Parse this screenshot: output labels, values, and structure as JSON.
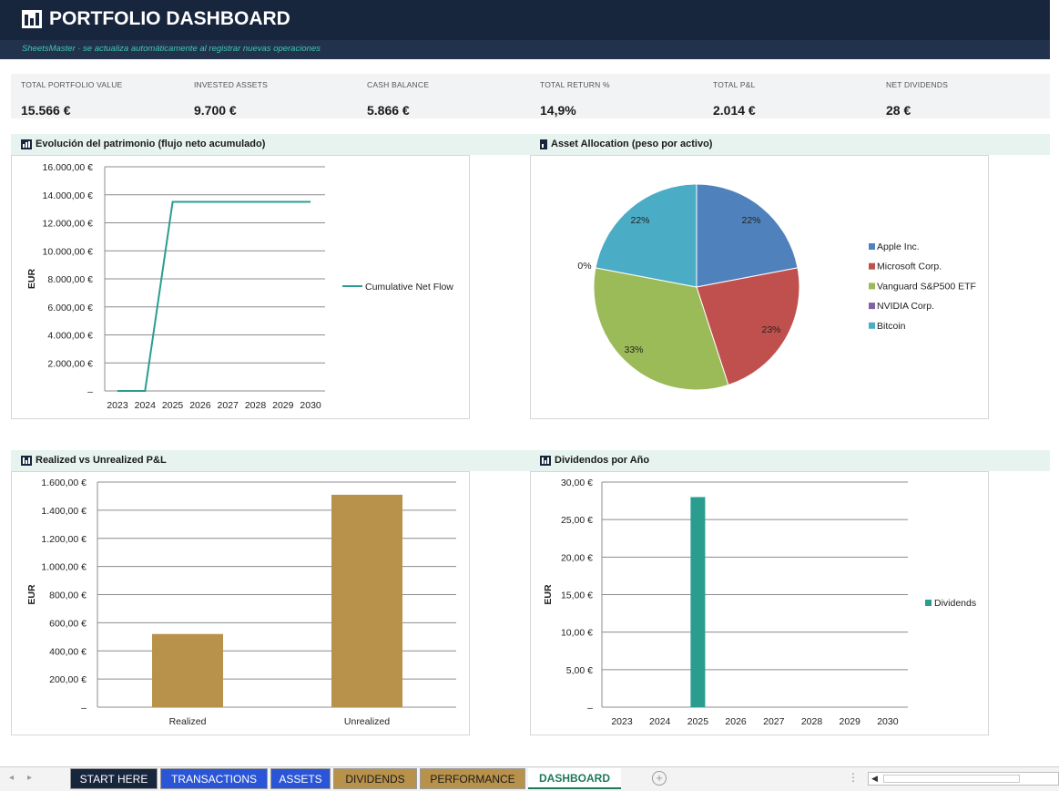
{
  "header": {
    "title": "PORTFOLIO DASHBOARD",
    "subtitle": "SheetsMaster · se actualiza automáticamente al registrar nuevas operaciones"
  },
  "kpis": [
    {
      "label": "TOTAL PORTFOLIO VALUE",
      "value": "15.566 €"
    },
    {
      "label": "INVESTED ASSETS",
      "value": "9.700 €"
    },
    {
      "label": "CASH BALANCE",
      "value": "5.866 €"
    },
    {
      "label": "TOTAL RETURN %",
      "value": "14,9%"
    },
    {
      "label": "TOTAL P&L",
      "value": "2.014 €"
    },
    {
      "label": "NET DIVIDENDS",
      "value": "28 €"
    }
  ],
  "sections": {
    "wealth": "Evolución del patrimonio (flujo neto acumulado)",
    "allocation": "Asset Allocation (peso por activo)",
    "pnl": "Realized vs Unrealized P&L",
    "dividends": "Dividendos por Año"
  },
  "colors": {
    "header_bg": "#17253d",
    "accent_teal": "#2a9d8f",
    "bar_gold": "#b8924a",
    "pie": [
      "#4f81bd",
      "#c0504d",
      "#9bbb59",
      "#8064a2",
      "#4bacc6"
    ]
  },
  "chart_data": [
    {
      "type": "line",
      "title": "",
      "xlabel": "",
      "ylabel": "EUR",
      "x": [
        "2023",
        "2024",
        "2025",
        "2026",
        "2027",
        "2028",
        "2029",
        "2030"
      ],
      "series": [
        {
          "name": "Cumulative Net Flow",
          "values": [
            0,
            0,
            13500,
            13500,
            13500,
            13500,
            13500,
            13500
          ]
        }
      ],
      "ylim": [
        0,
        16000
      ],
      "yticks": [
        "–",
        "2.000,00 €",
        "4.000,00 €",
        "6.000,00 €",
        "8.000,00 €",
        "10.000,00 €",
        "12.000,00 €",
        "14.000,00 €",
        "16.000,00 €"
      ],
      "grid": true,
      "legend": "right"
    },
    {
      "type": "pie",
      "labels": [
        "Apple Inc.",
        "Microsoft Corp.",
        "Vanguard S&P500 ETF",
        "NVIDIA Corp.",
        "Bitcoin"
      ],
      "values": [
        22,
        23,
        33,
        0,
        22
      ],
      "data_labels": [
        "22%",
        "23%",
        "33%",
        "0%",
        "22%"
      ],
      "legend": "right"
    },
    {
      "type": "bar",
      "categories": [
        "Realized",
        "Unrealized"
      ],
      "values": [
        520,
        1510
      ],
      "ylabel": "EUR",
      "ylim": [
        0,
        1600
      ],
      "yticks": [
        "–",
        "200,00 €",
        "400,00 €",
        "600,00 €",
        "800,00 €",
        "1.000,00 €",
        "1.200,00 €",
        "1.400,00 €",
        "1.600,00 €"
      ],
      "grid": true
    },
    {
      "type": "bar",
      "categories": [
        "2023",
        "2024",
        "2025",
        "2026",
        "2027",
        "2028",
        "2029",
        "2030"
      ],
      "series": [
        {
          "name": "Dividends",
          "values": [
            0,
            0,
            28,
            0,
            0,
            0,
            0,
            0
          ]
        }
      ],
      "ylabel": "EUR",
      "ylim": [
        0,
        30
      ],
      "yticks": [
        "–",
        "5,00 €",
        "10,00 €",
        "15,00 €",
        "20,00 €",
        "25,00 €",
        "30,00 €"
      ],
      "grid": true,
      "legend": "right"
    }
  ],
  "tabs": [
    {
      "label": "START HERE",
      "bg": "#17253d",
      "fg": "#ffffff"
    },
    {
      "label": "TRANSACTIONS",
      "bg": "#2a55d6",
      "fg": "#ffffff"
    },
    {
      "label": "ASSETS",
      "bg": "#2a55d6",
      "fg": "#ffffff"
    },
    {
      "label": "DIVIDENDS",
      "bg": "#b8924a",
      "fg": "#1a1a1a"
    },
    {
      "label": "PERFORMANCE",
      "bg": "#b8924a",
      "fg": "#1a1a1a"
    },
    {
      "label": "DASHBOARD",
      "bg": "#ffffff",
      "fg": "#1e7a5a"
    }
  ],
  "tab_controls": {
    "add": "+",
    "menu": "⋮",
    "prev": "◂",
    "next": "▸",
    "scroll_left": "◀"
  }
}
